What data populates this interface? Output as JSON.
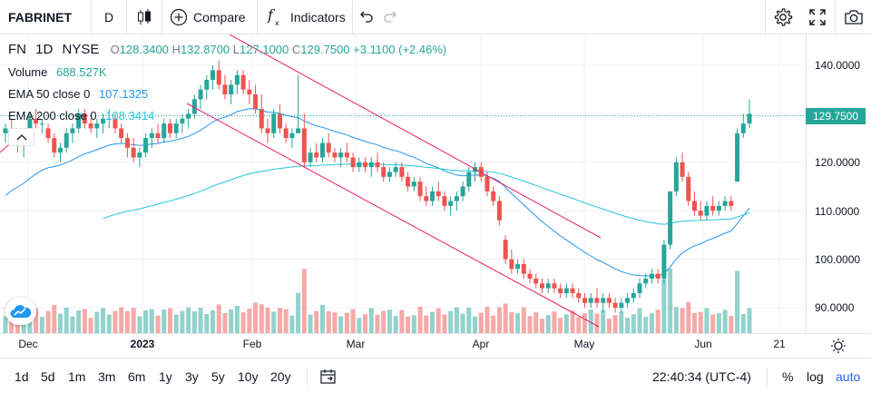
{
  "toolbar": {
    "symbol": "FABRINET",
    "interval": "D",
    "compare_label": "Compare",
    "indicators_label": "Indicators",
    "icons": [
      "candles-icon",
      "compare-plus-icon",
      "fx-icon",
      "undo-icon",
      "redo-icon",
      "settings-gear-icon",
      "fullscreen-icon",
      "camera-icon"
    ]
  },
  "legend": {
    "ticker": "FN",
    "interval": "1D",
    "exchange": "NYSE",
    "open_label": "O",
    "open": "128.3400",
    "high_label": "H",
    "high": "132.8700",
    "low_label": "L",
    "low": "127.1000",
    "close_label": "C",
    "close": "129.7500",
    "change": "+3.1100 (+2.46%)",
    "volume_label": "Volume",
    "volume": "688.527K",
    "ema50_label": "EMA 50 close 0",
    "ema50": "107.1325",
    "ema200_label": "EMA 200 close 0",
    "ema200": "108.3414"
  },
  "price_scale": {
    "ticks": [
      "140.0000",
      "130.0000",
      "120.0000",
      "110.0000",
      "100.0000",
      "90.0000"
    ],
    "last_price": "129.7500"
  },
  "time_scale": {
    "ticks": [
      "Dec",
      "2023",
      "Feb",
      "Mar",
      "Apr",
      "May",
      "Jun",
      "21"
    ]
  },
  "bottom_bar": {
    "ranges": [
      "1d",
      "5d",
      "1m",
      "3m",
      "6m",
      "1y",
      "3y",
      "5y",
      "10y",
      "20y"
    ],
    "clock": "22:40:34 (UTC-4)",
    "percent_label": "%",
    "log_label": "log",
    "auto_label": "auto"
  },
  "colors": {
    "up": "#26a69a",
    "down": "#ef5350",
    "ema50": "#2196f3",
    "ema200": "#26c6da",
    "trendline": "#e91e63",
    "accent": "#2962ff"
  },
  "chart_data": {
    "type": "candlestick",
    "y_range": [
      86.0,
      148.0
    ],
    "ema50_last": 107.1325,
    "ema200_last": 108.3414,
    "candles": [
      [
        126,
        128,
        124,
        127
      ],
      [
        127,
        129,
        125,
        126
      ],
      [
        126,
        127,
        122,
        124
      ],
      [
        124,
        126,
        121,
        125
      ],
      [
        125,
        130,
        124,
        129
      ],
      [
        129,
        131,
        127,
        128
      ],
      [
        128,
        129,
        126,
        128
      ],
      [
        127,
        128,
        124,
        125
      ],
      [
        125,
        126,
        121,
        122
      ],
      [
        122,
        124,
        120,
        123
      ],
      [
        123,
        127,
        122,
        126
      ],
      [
        126,
        128,
        124,
        127
      ],
      [
        127,
        131,
        126,
        130
      ],
      [
        130,
        131,
        127,
        128
      ],
      [
        128,
        129,
        126,
        127
      ],
      [
        127,
        129,
        125,
        128
      ],
      [
        128,
        130,
        126,
        129
      ],
      [
        129,
        131,
        127,
        129
      ],
      [
        129,
        130,
        126,
        127
      ],
      [
        127,
        128,
        124,
        125
      ],
      [
        125,
        126,
        121,
        123
      ],
      [
        123,
        125,
        120,
        121
      ],
      [
        121,
        123,
        119,
        122
      ],
      [
        122,
        126,
        121,
        125
      ],
      [
        125,
        127,
        123,
        126
      ],
      [
        126,
        128,
        124,
        125
      ],
      [
        125,
        129,
        124,
        128
      ],
      [
        128,
        129,
        125,
        126
      ],
      [
        126,
        129,
        125,
        128
      ],
      [
        128,
        130,
        126,
        129
      ],
      [
        129,
        131,
        127,
        130
      ],
      [
        130,
        134,
        129,
        133
      ],
      [
        133,
        136,
        131,
        135
      ],
      [
        135,
        138,
        133,
        137
      ],
      [
        137,
        140,
        135,
        139
      ],
      [
        139,
        141,
        135,
        136
      ],
      [
        136,
        138,
        133,
        134
      ],
      [
        134,
        137,
        132,
        136
      ],
      [
        136,
        139,
        134,
        138
      ],
      [
        138,
        139,
        134,
        135
      ],
      [
        135,
        137,
        132,
        134
      ],
      [
        134,
        136,
        130,
        131
      ],
      [
        131,
        134,
        126,
        127
      ],
      [
        127,
        129,
        124,
        126
      ],
      [
        126,
        131,
        125,
        130
      ],
      [
        130,
        132,
        126,
        127
      ],
      [
        127,
        128,
        124,
        125
      ],
      [
        125,
        127,
        123,
        126
      ],
      [
        126,
        138,
        126,
        127
      ],
      [
        127,
        130,
        119,
        120
      ],
      [
        120,
        123,
        119,
        122
      ],
      [
        122,
        124,
        120,
        121
      ],
      [
        121,
        125,
        120,
        124
      ],
      [
        124,
        126,
        121,
        122
      ],
      [
        122,
        123,
        120,
        121
      ],
      [
        121,
        123,
        119,
        122
      ],
      [
        122,
        124,
        120,
        121
      ],
      [
        121,
        122,
        118,
        119
      ],
      [
        119,
        121,
        118,
        120
      ],
      [
        120,
        121,
        118,
        119
      ],
      [
        119,
        121,
        117,
        120
      ],
      [
        120,
        122,
        118,
        119
      ],
      [
        119,
        120,
        116,
        117
      ],
      [
        117,
        119,
        116,
        118
      ],
      [
        118,
        120,
        117,
        119
      ],
      [
        119,
        120,
        116,
        117
      ],
      [
        117,
        118,
        114,
        115
      ],
      [
        115,
        117,
        114,
        116
      ],
      [
        116,
        117,
        112,
        113
      ],
      [
        113,
        115,
        111,
        112
      ],
      [
        112,
        115,
        111,
        114
      ],
      [
        114,
        116,
        112,
        113
      ],
      [
        113,
        114,
        110,
        111
      ],
      [
        111,
        113,
        109,
        112
      ],
      [
        112,
        114,
        110,
        113
      ],
      [
        113,
        116,
        112,
        115
      ],
      [
        115,
        119,
        114,
        118
      ],
      [
        118,
        120,
        116,
        119
      ],
      [
        119,
        120,
        116,
        117
      ],
      [
        117,
        118,
        113,
        114
      ],
      [
        114,
        115,
        111,
        112
      ],
      [
        112,
        113,
        107,
        108
      ],
      [
        104,
        105,
        99,
        100
      ],
      [
        100,
        102,
        97,
        98
      ],
      [
        98,
        100,
        97,
        99
      ],
      [
        99,
        100,
        96,
        97
      ],
      [
        97,
        98,
        95,
        96
      ],
      [
        96,
        97,
        94,
        95
      ],
      [
        95,
        96,
        93,
        94
      ],
      [
        94,
        96,
        93,
        95
      ],
      [
        95,
        96,
        93,
        94
      ],
      [
        94,
        95,
        92,
        93
      ],
      [
        93,
        95,
        92,
        94
      ],
      [
        94,
        95,
        92,
        93
      ],
      [
        93,
        94,
        91,
        92
      ],
      [
        92,
        93,
        90,
        91
      ],
      [
        91,
        93,
        90,
        92
      ],
      [
        92,
        94,
        90,
        91
      ],
      [
        91,
        93,
        89,
        92
      ],
      [
        92,
        93,
        90,
        91
      ],
      [
        91,
        92,
        89,
        90
      ],
      [
        90,
        92,
        89,
        91
      ],
      [
        91,
        93,
        90,
        92
      ],
      [
        92,
        94,
        91,
        93
      ],
      [
        93,
        96,
        92,
        95
      ],
      [
        95,
        97,
        94,
        96
      ],
      [
        96,
        98,
        95,
        97
      ],
      [
        97,
        98,
        95,
        96
      ],
      [
        96,
        104,
        95,
        103
      ],
      [
        103,
        114,
        102,
        114
      ],
      [
        114,
        121,
        113,
        120
      ],
      [
        120,
        122,
        116,
        117
      ],
      [
        117,
        118,
        111,
        112
      ],
      [
        112,
        114,
        109,
        110
      ],
      [
        110,
        112,
        108,
        109
      ],
      [
        109,
        112,
        108,
        111
      ],
      [
        111,
        113,
        109,
        110
      ],
      [
        110,
        112,
        109,
        111
      ],
      [
        111,
        113,
        110,
        112
      ],
      [
        112,
        113,
        110,
        111
      ],
      [
        116,
        127,
        116,
        126
      ],
      [
        126,
        130,
        125,
        128
      ],
      [
        128,
        133,
        127,
        130
      ]
    ],
    "trendlines": [
      {
        "from": [
          253,
          0
        ],
        "to": [
          662,
          224
        ]
      },
      {
        "from": [
          206,
          76
        ],
        "to": [
          660,
          322
        ]
      },
      {
        "from": [
          0,
          130
        ],
        "to": [
          28,
          105
        ]
      }
    ]
  }
}
